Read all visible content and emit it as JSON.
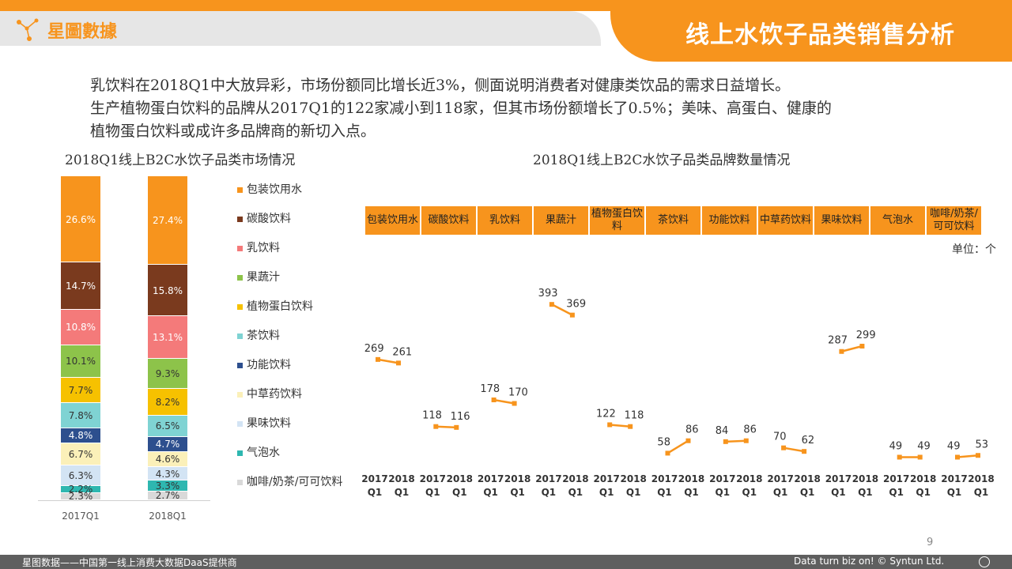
{
  "header": {
    "logo_text": "星圖數據",
    "title": "线上水饮子品类销售分析"
  },
  "intro": [
    "乳饮料在2018Q1中大放异彩，市场份额同比增长近3%，侧面说明消费者对健康类饮品的需求日益增长。",
    "生产植物蛋白饮料的品牌从2017Q1的122家减小到118家，但其市场份额增长了0.5%；美味、高蛋白、健康的",
    "植物蛋白饮料或成许多品牌商的新切入点。"
  ],
  "colors": {
    "accent": "#F7941D",
    "footer": "#5F5F5F",
    "logo_band": "#E6E6E6"
  },
  "chart_data": [
    {
      "type": "bar",
      "stacked": true,
      "percent": true,
      "title": "2018Q1线上B2C水饮子品类市场情况",
      "categories": [
        "2017Q1",
        "2018Q1"
      ],
      "legend_position": "right",
      "series": [
        {
          "name": "包装饮用水",
          "color": "#F7941D",
          "values": [
            26.6,
            27.4
          ],
          "labels": [
            "26.6%",
            "27.4%"
          ]
        },
        {
          "name": "碳酸饮料",
          "color": "#7A3A1E",
          "values": [
            14.7,
            15.8
          ],
          "labels": [
            "14.7%",
            "15.8%"
          ]
        },
        {
          "name": "乳饮料",
          "color": "#F47A7A",
          "values": [
            10.8,
            13.1
          ],
          "labels": [
            "10.8%",
            "13.1%"
          ]
        },
        {
          "name": "果蔬汁",
          "color": "#8DC34A",
          "values": [
            10.1,
            9.3
          ],
          "labels": [
            "10.1%",
            "9.3%"
          ]
        },
        {
          "name": "植物蛋白饮料",
          "color": "#F6C100",
          "values": [
            7.7,
            8.2
          ],
          "labels": [
            "7.7%",
            "8.2%"
          ]
        },
        {
          "name": "茶饮料",
          "color": "#7FD3D3",
          "values": [
            7.8,
            6.5
          ],
          "labels": [
            "7.8%",
            "6.5%"
          ]
        },
        {
          "name": "功能饮料",
          "color": "#2D4F8E",
          "values": [
            4.8,
            4.7
          ],
          "labels": [
            "4.8%",
            "4.7%"
          ]
        },
        {
          "name": "中草药饮料",
          "color": "#FBF0B9",
          "values": [
            6.7,
            4.6
          ],
          "labels": [
            "6.7%",
            "4.6%"
          ]
        },
        {
          "name": "果味饮料",
          "color": "#D3E4F4",
          "values": [
            6.3,
            4.3
          ],
          "labels": [
            "6.3%",
            "4.3%"
          ]
        },
        {
          "name": "气泡水",
          "color": "#2EB7B0",
          "values": [
            2.2,
            3.3
          ],
          "labels": [
            "2.2%",
            "3.3%"
          ]
        },
        {
          "name": "咖啡/奶茶/可可饮料",
          "color": "#D9D9D9",
          "values": [
            2.3,
            2.7
          ],
          "labels": [
            "2.3%",
            "2.7%"
          ]
        }
      ]
    },
    {
      "type": "line",
      "title": "2018Q1线上B2C水饮子品类品牌数量情况",
      "unit": "单位：个",
      "color": "#F7941D",
      "x_labels": [
        "2017 Q1",
        "2018 Q1"
      ],
      "categories": [
        "包装饮用水",
        "碳酸饮料",
        "乳饮料",
        "果蔬汁",
        "植物蛋白饮料",
        "茶饮料",
        "功能饮料",
        "中草药饮料",
        "果味饮料",
        "气泡水",
        "咖啡/奶茶/可可饮料"
      ],
      "category_display": [
        "包装饮用水",
        "碳酸饮料",
        "乳饮料",
        "果蔬汁",
        "植物蛋白饮料",
        "茶饮料",
        "功能饮料",
        "中草药饮料",
        "果味饮料",
        "气泡水",
        "咖啡/奶茶/可可饮料"
      ],
      "values": [
        [
          269,
          261
        ],
        [
          118,
          116
        ],
        [
          178,
          170
        ],
        [
          393,
          369
        ],
        [
          122,
          118
        ],
        [
          58,
          86
        ],
        [
          84,
          86
        ],
        [
          70,
          62
        ],
        [
          287,
          299
        ],
        [
          49,
          49
        ],
        [
          49,
          53
        ]
      ]
    }
  ],
  "footer": {
    "page_number": "9",
    "left": "星图数据——中国第一线上消费大数据DaaS提供商",
    "right": "Data turn biz on! © Syntun Ltd."
  }
}
